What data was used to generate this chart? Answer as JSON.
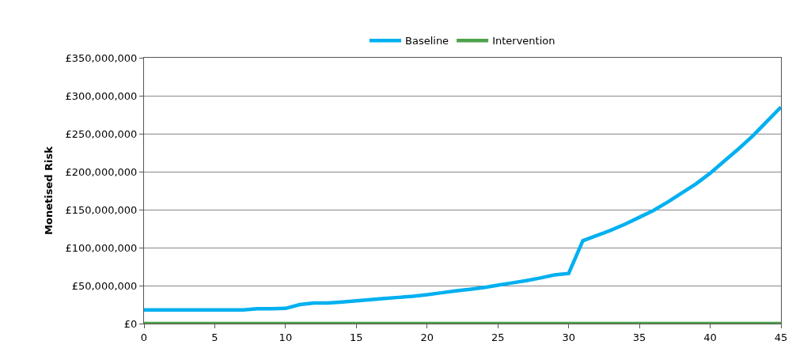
{
  "chart_data": {
    "type": "line",
    "ylabel": "Monetised Risk",
    "x": [
      0,
      1,
      2,
      3,
      4,
      5,
      6,
      7,
      8,
      9,
      10,
      11,
      12,
      13,
      14,
      15,
      16,
      17,
      18,
      19,
      20,
      21,
      22,
      23,
      24,
      25,
      26,
      27,
      28,
      29,
      30,
      31,
      32,
      33,
      34,
      35,
      36,
      37,
      38,
      39,
      40,
      41,
      42,
      43,
      44,
      45
    ],
    "series": [
      {
        "name": "Baseline",
        "color": "#00b0f0",
        "values": [
          18000000,
          18000000,
          18000000,
          18000000,
          18000000,
          18000000,
          18000000,
          18000000,
          19500000,
          19500000,
          20000000,
          25000000,
          27000000,
          27000000,
          28500000,
          30000000,
          31500000,
          33000000,
          34500000,
          36000000,
          38000000,
          40500000,
          43000000,
          45000000,
          47500000,
          50500000,
          53500000,
          56500000,
          60000000,
          64000000,
          66000000,
          109000000,
          116000000,
          123000000,
          131000000,
          140000000,
          149000000,
          160000000,
          172000000,
          184000000,
          198000000,
          214000000,
          230000000,
          247000000,
          266000000,
          285000000
        ]
      },
      {
        "name": "Intervention",
        "color": "#4ea24a",
        "values": [
          0,
          0,
          0,
          0,
          0,
          0,
          0,
          0,
          0,
          0,
          0,
          0,
          0,
          0,
          0,
          0,
          0,
          0,
          0,
          0,
          0,
          0,
          0,
          0,
          0,
          0,
          0,
          0,
          0,
          0,
          0,
          0,
          0,
          0,
          0,
          0,
          0,
          0,
          0,
          0,
          0,
          0,
          0,
          0,
          0,
          0
        ]
      }
    ],
    "xlim": [
      0,
      45
    ],
    "xticks": [
      0,
      5,
      10,
      15,
      20,
      25,
      30,
      35,
      40,
      45
    ],
    "ylim": [
      0,
      350000000
    ],
    "yticks": [
      {
        "value": 0,
        "label": "£0"
      },
      {
        "value": 50000000,
        "label": "£50,000,000"
      },
      {
        "value": 100000000,
        "label": "£100,000,000"
      },
      {
        "value": 150000000,
        "label": "£150,000,000"
      },
      {
        "value": 200000000,
        "label": "£200,000,000"
      },
      {
        "value": 250000000,
        "label": "£250,000,000"
      },
      {
        "value": 300000000,
        "label": "£300,000,000"
      },
      {
        "value": 350000000,
        "label": "£350,000,000"
      }
    ],
    "grid": "y",
    "legend": "top",
    "marker": "none",
    "line_style": "solid"
  }
}
